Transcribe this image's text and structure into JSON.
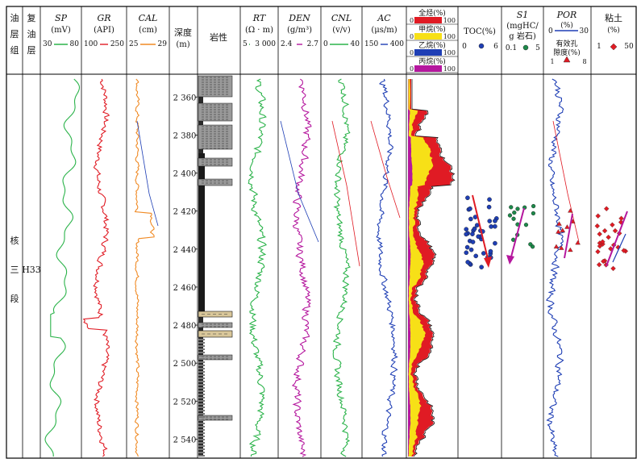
{
  "chart_data": {
    "type": "well-log",
    "left_labels": {
      "formation_header": [
        "油",
        "层",
        "组"
      ],
      "suboil_header": [
        "复",
        "油",
        "层"
      ],
      "formation_value": [
        "核",
        "三",
        "段"
      ],
      "suboil_value": "H33"
    },
    "depth": {
      "header": [
        "深度",
        "(m)"
      ],
      "ticks": [
        "2 360",
        "2 380",
        "2 400",
        "2 420",
        "2 440",
        "2 460",
        "2 480",
        "2 500",
        "2 520",
        "2 540"
      ],
      "range": [
        2348,
        2550
      ]
    },
    "lithology_header": "岩性",
    "curves": [
      {
        "name": "SP",
        "unit": "(mV)",
        "min": "30",
        "max": "80",
        "color": "#2bb34a",
        "italic": true
      },
      {
        "name": "GR",
        "unit": "(API)",
        "min": "100",
        "max": "250",
        "color": "#e01b24",
        "italic": true
      },
      {
        "name": "CAL",
        "unit": "(cm)",
        "min": "25",
        "max": "29",
        "color": "#f08a24",
        "italic": true
      },
      {
        "name": "RT",
        "unit": "(Ω · m)",
        "min": "5",
        "max": "3 000",
        "color": "#2bb34a",
        "italic": true
      },
      {
        "name": "DEN",
        "unit": "(g/m³)",
        "min": "2.4",
        "max": "2.7",
        "color": "#b5179e",
        "italic": true
      },
      {
        "name": "CNL",
        "unit": "(v/v)",
        "min": "0",
        "max": "40",
        "color": "#2bb34a",
        "italic": true
      },
      {
        "name": "AC",
        "unit": "(μs/m)",
        "min": "150",
        "max": "400",
        "color": "#1f3fb5",
        "italic": true
      }
    ],
    "gas": [
      {
        "label": "全烃(%)",
        "min": "0",
        "max": "100",
        "color": "#e01b24"
      },
      {
        "label": "甲烷(%)",
        "min": "0",
        "max": "100",
        "color": "#f7e017"
      },
      {
        "label": "乙烷(%)",
        "min": "0",
        "max": "100",
        "color": "#1f3fb5"
      },
      {
        "label": "丙烷(%)",
        "min": "0",
        "max": "100",
        "color": "#b5179e"
      }
    ],
    "toc": {
      "label": "TOC(%)",
      "min": "0",
      "max": "6",
      "color": "#1f3fb5"
    },
    "s1": {
      "label1": "S1",
      "label2": "(mgHC/",
      "label3": "g 岩石)",
      "min": "0.1",
      "max": "5",
      "color": "#1d8a4a"
    },
    "por": {
      "label": "POR",
      "unit": "(%)",
      "min": "0",
      "max": "30",
      "color": "#1f3fb5",
      "eff_label1": "有效孔",
      "eff_label2": "隙度(%)",
      "eff_min": "1",
      "eff_max": "8",
      "eff_color": "#e01b24"
    },
    "clay": {
      "label": "粘土",
      "unit": "(%)",
      "min": "1",
      "max": "50",
      "color": "#e01b24"
    }
  }
}
